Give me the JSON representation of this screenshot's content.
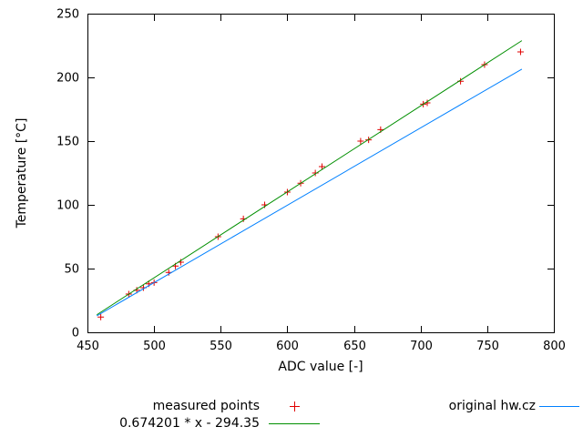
{
  "chart_data": {
    "type": "scatter",
    "title": "",
    "xlabel": "ADC value [-]",
    "ylabel": "Temperature [°C]",
    "xlim": [
      450,
      800
    ],
    "ylim": [
      0,
      250
    ],
    "xticks": [
      450,
      500,
      550,
      600,
      650,
      700,
      750,
      800
    ],
    "yticks": [
      0,
      50,
      100,
      150,
      200,
      250
    ],
    "grid": false,
    "legend_position": "bottom",
    "axis_color": "#000000",
    "background": "#ffffff",
    "series": [
      {
        "name": "measured points",
        "type": "scatter",
        "marker": "plus",
        "color": "#e00000",
        "points": [
          [
            460,
            12
          ],
          [
            481,
            30
          ],
          [
            487,
            33
          ],
          [
            492,
            35
          ],
          [
            496,
            38
          ],
          [
            500,
            39
          ],
          [
            511,
            47
          ],
          [
            516,
            52
          ],
          [
            520,
            55
          ],
          [
            548,
            75
          ],
          [
            567,
            89
          ],
          [
            583,
            100
          ],
          [
            600,
            110
          ],
          [
            610,
            117
          ],
          [
            621,
            125
          ],
          [
            626,
            130
          ],
          [
            655,
            150
          ],
          [
            661,
            151
          ],
          [
            670,
            159
          ],
          [
            702,
            179
          ],
          [
            705,
            180
          ],
          [
            730,
            197
          ],
          [
            748,
            210
          ],
          [
            775,
            220
          ]
        ]
      },
      {
        "name": "0.674201 * x - 294.35",
        "type": "line",
        "color": "#008f00",
        "slope": 0.674201,
        "intercept": -294.35,
        "points": [
          [
            457,
            13.76
          ],
          [
            776,
            228.83
          ]
        ]
      },
      {
        "name": "original hw.cz",
        "type": "line",
        "color": "#0080ff",
        "points": [
          [
            457,
            12.9
          ],
          [
            776,
            206.5
          ]
        ]
      }
    ]
  }
}
